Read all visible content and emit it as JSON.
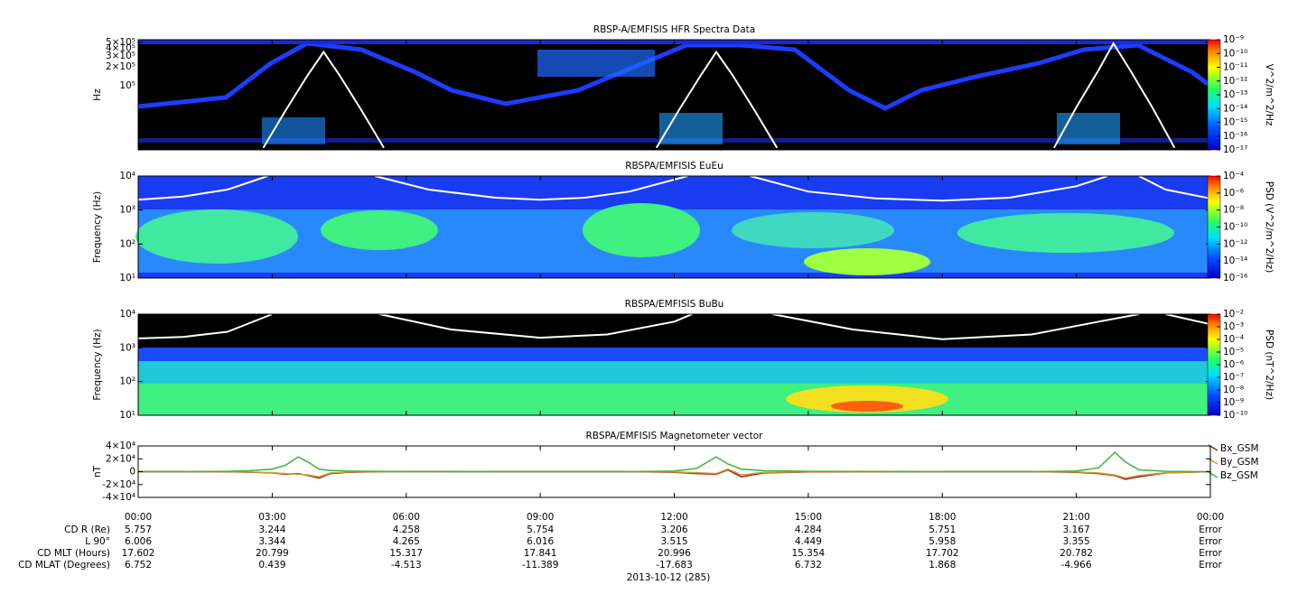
{
  "chart_data": [
    {
      "type": "spectrogram",
      "title": "RBSP-A/EMFISIS  HFR Spectra Data",
      "ylabel": "Hz",
      "log": true,
      "ylim": [
        9300,
        550000
      ],
      "yticks": [
        {
          "value": 100000,
          "label": "10⁵"
        },
        {
          "value": 200000,
          "label": "2×10⁵"
        },
        {
          "value": 300000,
          "label": "3×10⁵"
        },
        {
          "value": 400000,
          "label": "4×10⁵"
        },
        {
          "value": 500000,
          "label": "5×10⁵"
        }
      ],
      "colorbar": {
        "label": "V^2/m^2/Hz",
        "lim": [
          1e-17,
          1e-09
        ],
        "ticks": [
          {
            "value": 1e-17,
            "label": "10⁻¹⁷"
          },
          {
            "value": 1e-16,
            "label": "10⁻¹⁶"
          },
          {
            "value": 1e-15,
            "label": "10⁻¹⁵"
          },
          {
            "value": 1e-14,
            "label": "10⁻¹⁴"
          },
          {
            "value": 1e-13,
            "label": "10⁻¹³"
          },
          {
            "value": 1e-12,
            "label": "10⁻¹²"
          },
          {
            "value": 1e-11,
            "label": "10⁻¹¹"
          },
          {
            "value": 1e-10,
            "label": "10⁻¹⁰"
          },
          {
            "value": 1e-09,
            "label": "10⁻⁹"
          }
        ]
      },
      "x": [
        2.8,
        3.3,
        3.8,
        4.15,
        4.5,
        5.0,
        5.5,
        6.0,
        11.6,
        12.1,
        12.6,
        12.94,
        13.3,
        13.8,
        14.3,
        15.0,
        20.5,
        21.0,
        21.5,
        21.83,
        22.2,
        22.7,
        23.2
      ],
      "series": [
        {
          "color": "#ffffff",
          "values": [
            10000,
            40000,
            150000,
            350000,
            150000,
            40000,
            10000,
            null,
            10000,
            40000,
            150000,
            350000,
            150000,
            40000,
            10000,
            null,
            10000,
            45000,
            180000,
            480000,
            180000,
            45000,
            10000
          ]
        }
      ]
    },
    {
      "type": "spectrogram",
      "title": "RBSPA/EMFISIS  EuEu",
      "ylabel": "Frequency (Hz)",
      "log": true,
      "ylim": [
        10,
        10000
      ],
      "yticks": [
        {
          "value": 10,
          "label": "10¹"
        },
        {
          "value": 100,
          "label": "10²"
        },
        {
          "value": 1000,
          "label": "10³"
        },
        {
          "value": 10000,
          "label": "10⁴"
        }
      ],
      "colorbar": {
        "label": "PSD (V^2/m^2/Hz)",
        "lim": [
          1e-16,
          0.0001
        ],
        "ticks": [
          {
            "value": 1e-16,
            "label": "10⁻¹⁶"
          },
          {
            "value": 1e-14,
            "label": "10⁻¹⁴"
          },
          {
            "value": 1e-12,
            "label": "10⁻¹²"
          },
          {
            "value": 1e-10,
            "label": "10⁻¹⁰"
          },
          {
            "value": 1e-08,
            "label": "10⁻⁸"
          },
          {
            "value": 1e-06,
            "label": "10⁻⁶"
          },
          {
            "value": 0.0001,
            "label": "10⁻⁴"
          }
        ]
      },
      "x": [
        0,
        1,
        2,
        2.9,
        3.0,
        5.3,
        6.5,
        8,
        9,
        10,
        11,
        12.3,
        12.4,
        13.7,
        15,
        16.5,
        18,
        19.5,
        21,
        21.7,
        21.8,
        22.4,
        23,
        24
      ],
      "series": [
        {
          "color": "#ffffff",
          "values": [
            2000,
            2500,
            4000,
            10000,
            null,
            10000,
            4000,
            2300,
            2000,
            2300,
            3500,
            10000,
            null,
            10000,
            3500,
            2200,
            1900,
            2300,
            5000,
            10000,
            null,
            10000,
            4000,
            2200
          ]
        }
      ]
    },
    {
      "type": "spectrogram",
      "title": "RBSPA/EMFISIS  BuBu",
      "ylabel": "Frequency (Hz)",
      "log": true,
      "ylim": [
        10,
        10000
      ],
      "yticks": [
        {
          "value": 10,
          "label": "10¹"
        },
        {
          "value": 100,
          "label": "10²"
        },
        {
          "value": 1000,
          "label": "10³"
        },
        {
          "value": 10000,
          "label": "10⁴"
        }
      ],
      "colorbar": {
        "label": "PSD (nT^2/Hz)",
        "lim": [
          1e-10,
          0.01
        ],
        "ticks": [
          {
            "value": 1e-10,
            "label": "10⁻¹⁰"
          },
          {
            "value": 1e-09,
            "label": "10⁻⁹"
          },
          {
            "value": 1e-08,
            "label": "10⁻⁸"
          },
          {
            "value": 1e-07,
            "label": "10⁻⁷"
          },
          {
            "value": 1e-06,
            "label": "10⁻⁶"
          },
          {
            "value": 1e-05,
            "label": "10⁻⁵"
          },
          {
            "value": 0.0001,
            "label": "10⁻⁴"
          },
          {
            "value": 0.001,
            "label": "10⁻³"
          },
          {
            "value": 0.01,
            "label": "10⁻²"
          }
        ]
      },
      "x": [
        0,
        1,
        2,
        3,
        3.1,
        5.4,
        7,
        9,
        10.5,
        12,
        12.4,
        12.5,
        14.2,
        16,
        18,
        20,
        21.5,
        22.4,
        22.5,
        23.0,
        24
      ],
      "series": [
        {
          "color": "#ffffff",
          "values": [
            1900,
            2100,
            3000,
            10000,
            null,
            10000,
            3500,
            2000,
            2500,
            6000,
            10000,
            null,
            10000,
            3500,
            1800,
            2500,
            6000,
            10000,
            null,
            10000,
            5000
          ]
        }
      ]
    },
    {
      "type": "line",
      "title": "RBSPA/EMFISIS  Magnetometer vector",
      "ylabel": "nT",
      "log": false,
      "ylim": [
        -40000,
        40000
      ],
      "yticks": [
        {
          "value": -40000,
          "label": "-4×10⁴"
        },
        {
          "value": -20000,
          "label": "-2×10⁴"
        },
        0,
        {
          "value": 20000,
          "label": "2×10⁴"
        },
        {
          "value": 40000,
          "label": "4×10⁴"
        }
      ],
      "xlim": [
        0,
        24
      ],
      "xticks": [
        {
          "value": 0,
          "label": "00:00"
        },
        {
          "value": 3,
          "label": "03:00"
        },
        {
          "value": 6,
          "label": "06:00"
        },
        {
          "value": 9,
          "label": "09:00"
        },
        {
          "value": 12,
          "label": "12:00"
        },
        {
          "value": 15,
          "label": "15:00"
        },
        {
          "value": 18,
          "label": "18:00"
        },
        {
          "value": 21,
          "label": "21:00"
        },
        {
          "value": 24,
          "label": "00:00"
        }
      ],
      "x": [
        0,
        1,
        2,
        2.5,
        3,
        3.3,
        3.58,
        3.8,
        4.05,
        4.3,
        4.7,
        5.5,
        8,
        11,
        12,
        12.5,
        12.94,
        13.2,
        13.5,
        14,
        15,
        18,
        20,
        21,
        21.5,
        21.86,
        22.1,
        22.4,
        23,
        24
      ],
      "series": [
        {
          "name": "Bx_GSM",
          "color": "#a01e1e",
          "values": [
            0,
            0,
            -300,
            -800,
            -2000,
            -4000,
            -3000,
            -6000,
            -10000,
            -3000,
            -1000,
            0,
            0,
            0,
            -1000,
            -3000,
            -4000,
            3000,
            -8000,
            -2000,
            -500,
            0,
            0,
            -1000,
            -3000,
            -6000,
            -12000,
            -8000,
            -2000,
            0
          ]
        },
        {
          "name": "By_GSM",
          "color": "#c8a032",
          "values": [
            0,
            0,
            -200,
            -500,
            -1500,
            -3000,
            -4000,
            -5000,
            -8000,
            -2000,
            -500,
            0,
            0,
            0,
            -500,
            -1500,
            -3000,
            4000,
            -5000,
            -1000,
            -300,
            0,
            0,
            -500,
            -2000,
            -5000,
            -10000,
            -6000,
            -1500,
            0
          ]
        },
        {
          "name": "Bz_GSM",
          "color": "#3cb43c",
          "values": [
            0,
            0,
            500,
            1500,
            4000,
            10000,
            23000,
            15000,
            4000,
            2000,
            1000,
            300,
            0,
            0,
            1000,
            5000,
            23000,
            12000,
            4000,
            1500,
            500,
            0,
            0,
            1000,
            6000,
            30000,
            15000,
            3000,
            500,
            0
          ]
        }
      ]
    }
  ],
  "ephemeris": {
    "rows": [
      {
        "label": "CD R (Re)",
        "values": [
          5.757,
          3.244,
          4.258,
          5.754,
          3.206,
          4.284,
          5.751,
          3.167,
          "Error"
        ]
      },
      {
        "label": "L 90°",
        "values": [
          6.006,
          3.344,
          4.265,
          6.016,
          3.515,
          4.449,
          5.958,
          3.355,
          "Error"
        ]
      },
      {
        "label": "CD MLT (Hours)",
        "values": [
          17.602,
          20.799,
          15.317,
          17.841,
          20.996,
          15.354,
          17.702,
          20.782,
          "Error"
        ]
      },
      {
        "label": "CD MLAT (Degrees)",
        "values": [
          6.752,
          0.439,
          -4.513,
          -11.389,
          -17.683,
          6.732,
          1.868,
          -4.966,
          "Error"
        ]
      }
    ]
  },
  "date": "2013-10-12 (285)"
}
